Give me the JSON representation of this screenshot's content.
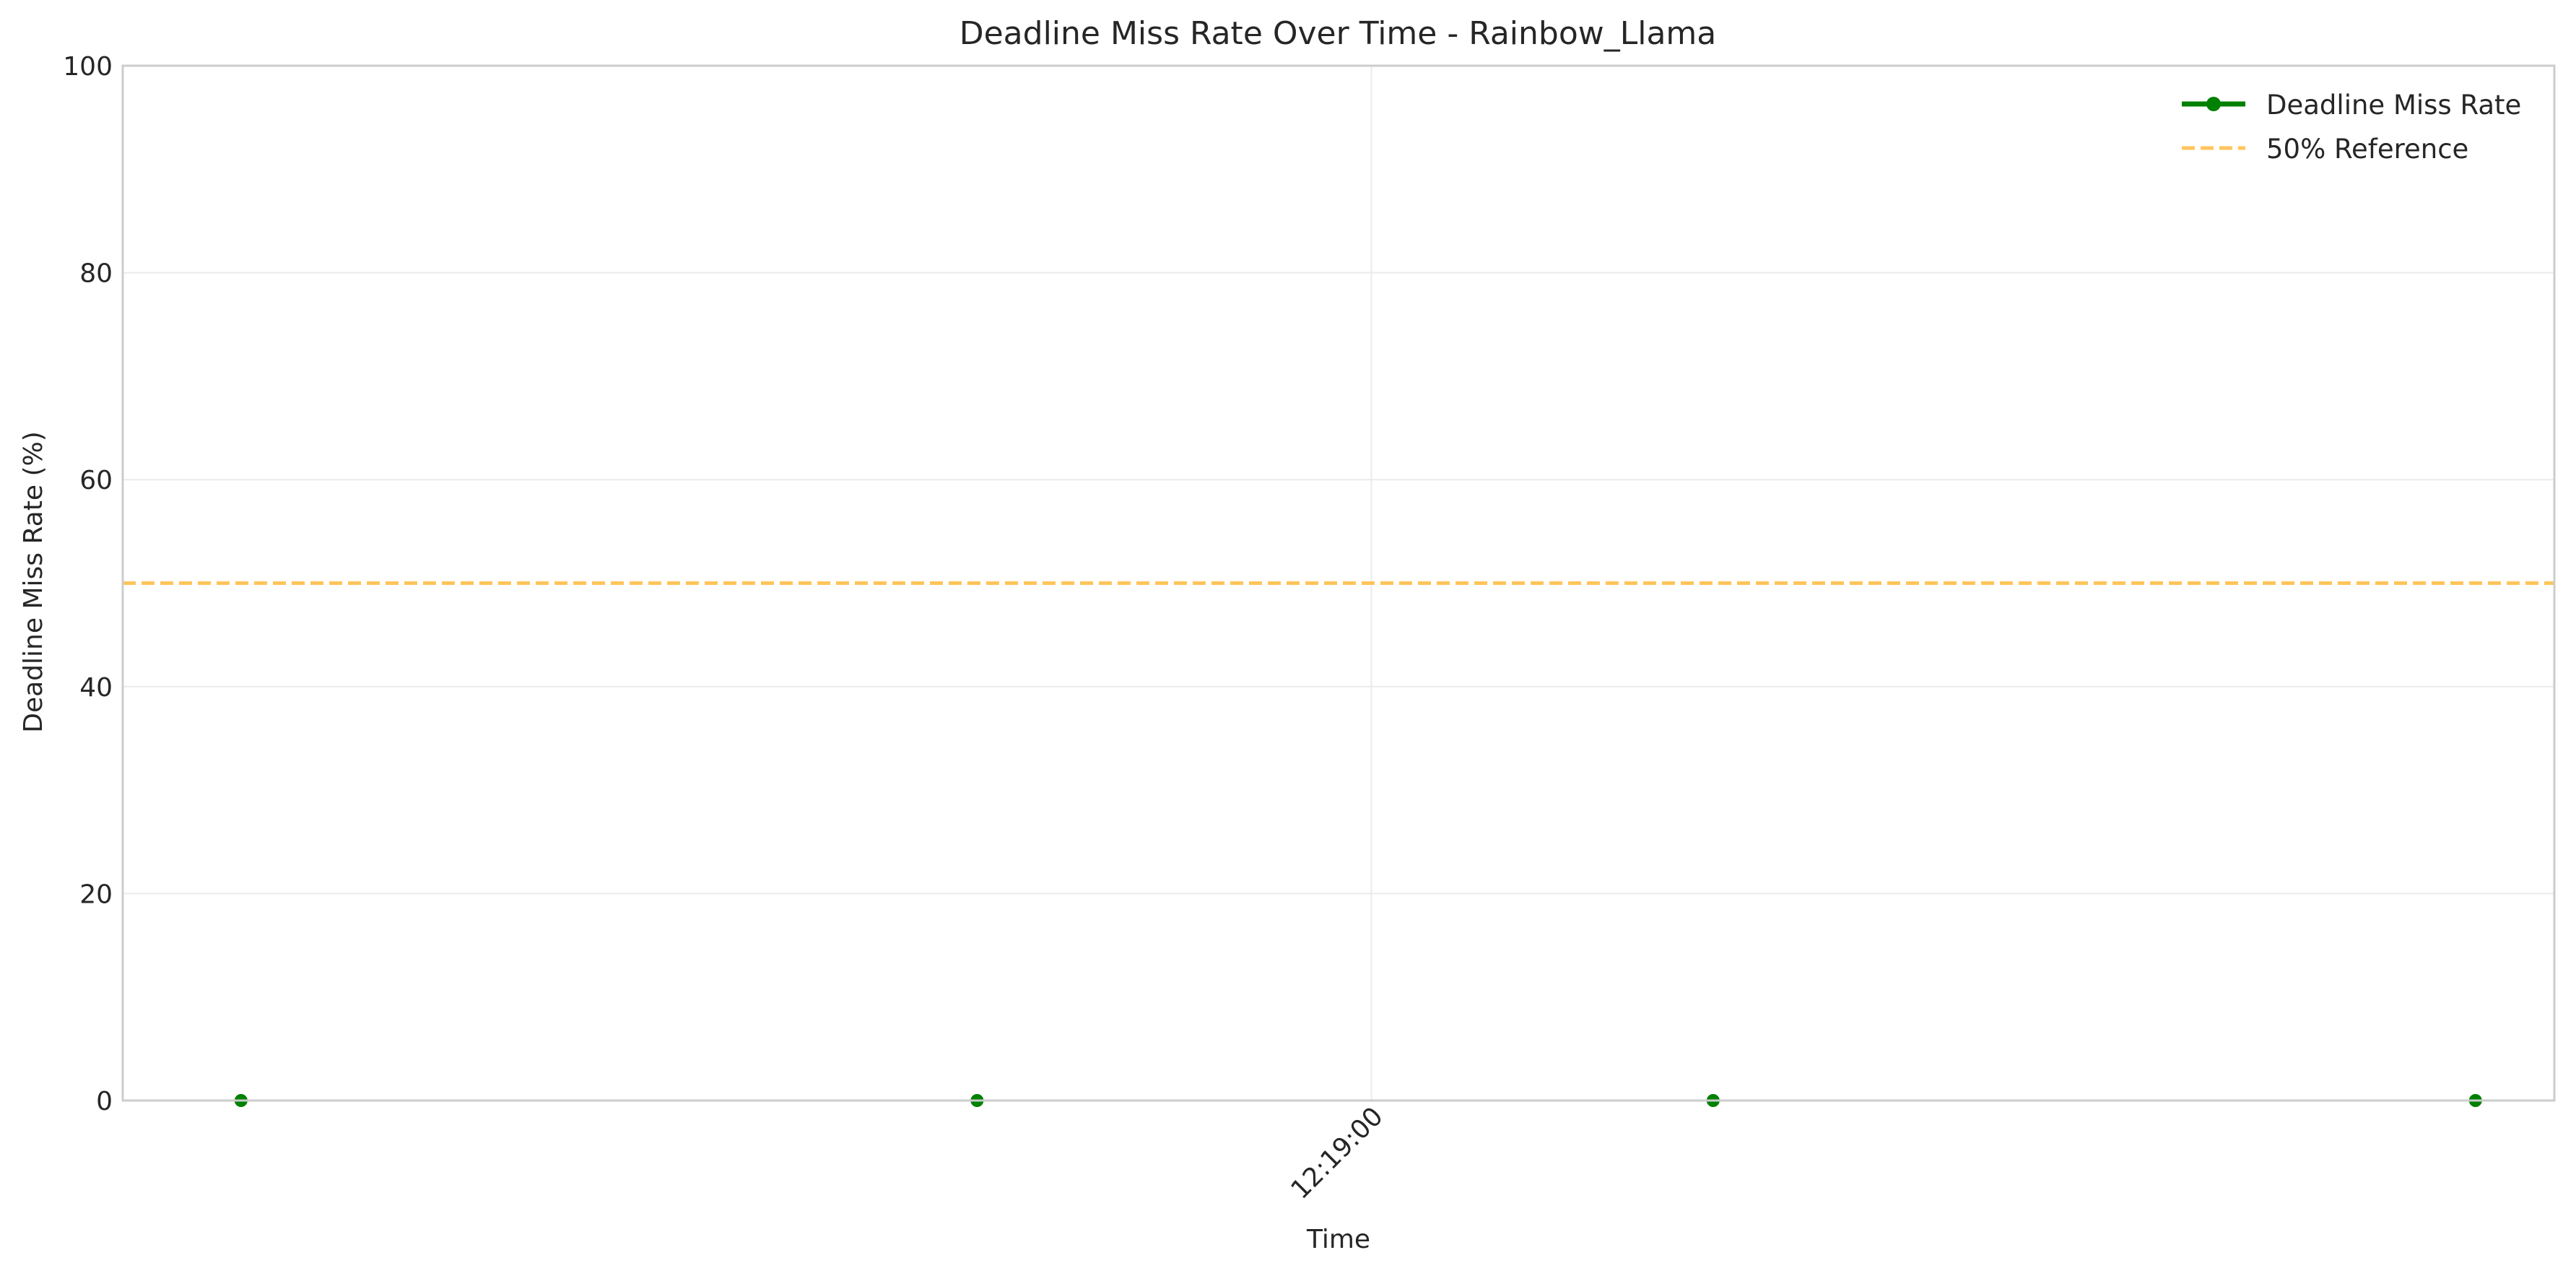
{
  "chart_data": {
    "type": "line",
    "title": "Deadline Miss Rate Over Time - Rainbow_Llama",
    "xlabel": "Time",
    "ylabel": "Deadline Miss Rate (%)",
    "ylim": [
      0,
      100
    ],
    "yticks": [
      0,
      20,
      40,
      60,
      80,
      100
    ],
    "xlim": [
      "12:18:12.5",
      "12:19:45"
    ],
    "xticks": [
      "12:19:00"
    ],
    "grid": true,
    "legend_position": "top-right",
    "series": [
      {
        "name": "Deadline Miss Rate",
        "color": "#008000",
        "marker": "circle",
        "x": [
          "12:18:17",
          "12:18:45",
          "12:19:13",
          "12:19:42"
        ],
        "y": [
          0,
          0,
          0,
          0
        ]
      }
    ],
    "reference_lines": [
      {
        "name": "50% Reference",
        "y": 50,
        "color": "#FFB733",
        "style": "dashed"
      }
    ]
  }
}
